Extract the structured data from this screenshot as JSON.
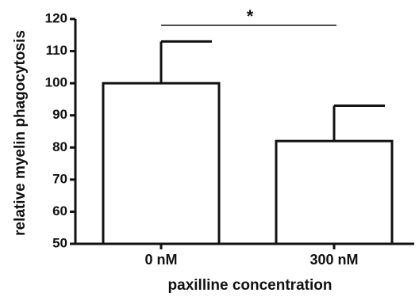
{
  "chart_data": {
    "type": "bar",
    "title": "",
    "xlabel": "paxilline concentration",
    "ylabel": "relative myelin phagocytosis",
    "categories": [
      "0 nM",
      "300 nM"
    ],
    "values": [
      100,
      82
    ],
    "error_upper": [
      113,
      93
    ],
    "ylim": [
      50,
      120
    ],
    "yticks": [
      50,
      60,
      70,
      80,
      90,
      100,
      110,
      120
    ],
    "ytick_labels": [
      "50",
      "60",
      "70",
      "80",
      "90",
      "100",
      "110",
      "120"
    ],
    "grid": false,
    "legend": "none",
    "bar_fill": "#ffffff",
    "bar_stroke": "#111111",
    "significance": {
      "between": [
        "0 nM",
        "300 nM"
      ],
      "label": "*"
    }
  }
}
